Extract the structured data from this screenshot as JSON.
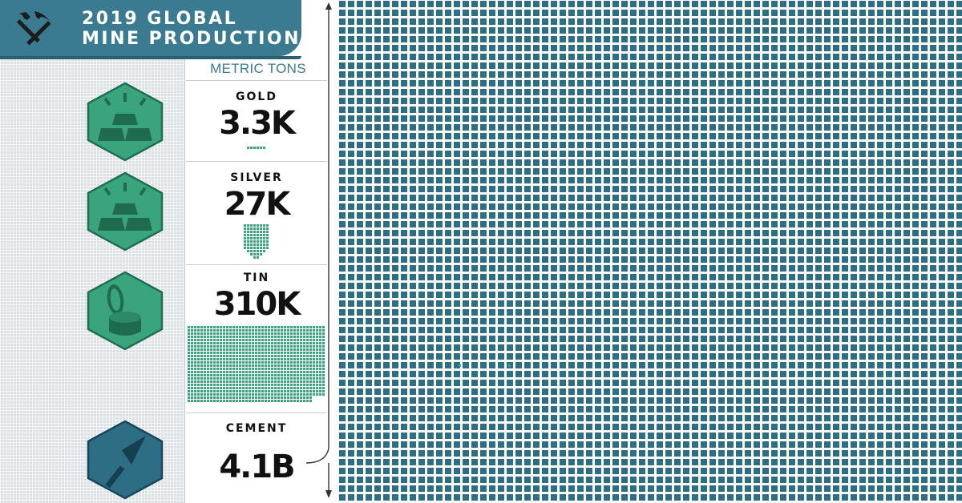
{
  "header": {
    "title_line1": "2019 GLOBAL",
    "title_line2": "MINE PRODUCTION"
  },
  "unit_label": "METRIC TONS",
  "chart_data": {
    "type": "unit-grid",
    "title": "2019 GLOBAL MINE PRODUCTION",
    "unit": "METRIC TONS",
    "series": [
      {
        "name": "GOLD",
        "label": "3.3K",
        "value": 3300,
        "color": "#3aa57c",
        "icon": "gold-bars-icon"
      },
      {
        "name": "SILVER",
        "label": "27K",
        "value": 27000,
        "color": "#3aa57c",
        "icon": "silver-bars-icon"
      },
      {
        "name": "TIN",
        "label": "310K",
        "value": 310000,
        "color": "#3aa57c",
        "icon": "tin-can-icon"
      },
      {
        "name": "CEMENT",
        "label": "4.1B",
        "value": 4100000000,
        "color": "#2d6e85",
        "icon": "trowel-icon"
      }
    ]
  },
  "colors": {
    "accent": "#3a7b91",
    "metal_green": "#3aa57c",
    "cement_blue": "#2d6e85",
    "strip": "#dde1e5"
  }
}
